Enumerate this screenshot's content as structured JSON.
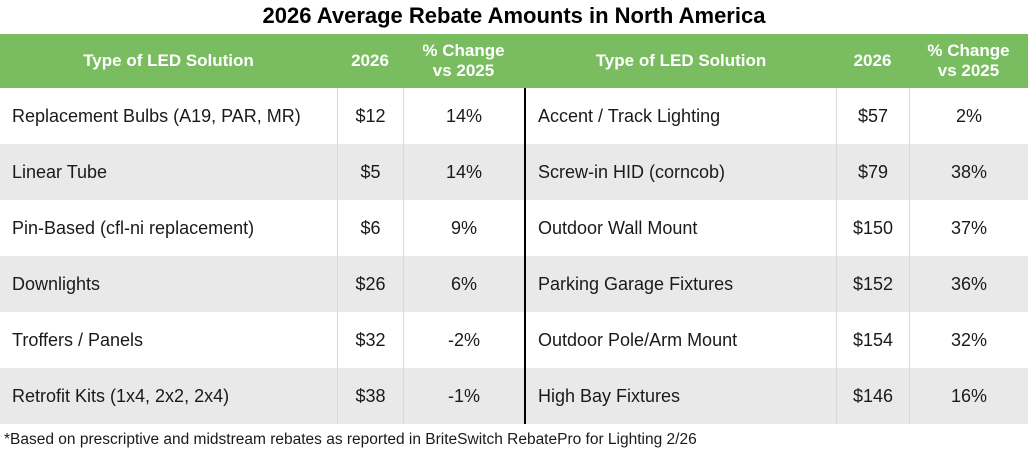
{
  "title": "2026 Average Rebate Amounts in North America",
  "footnote": "*Based on prescriptive and midstream rebates as reported in BriteSwitch RebatePro for Lighting 2/26",
  "colors": {
    "header_bg": "#79bd60",
    "header_text": "#ffffff",
    "row_alt_bg": "#e9e9e9",
    "column_divider": "#d9d9d9",
    "table_split_line": "#000000",
    "body_text": "#1a1a1a"
  },
  "columns": {
    "type": "Type of LED Solution",
    "year": "2026",
    "change": "% Change vs 2025"
  },
  "tables": [
    {
      "rows": [
        {
          "type": "Replacement Bulbs (A19, PAR, MR)",
          "amount": "$12",
          "change": "14%"
        },
        {
          "type": "Linear Tube",
          "amount": "$5",
          "change": "14%"
        },
        {
          "type": "Pin-Based (cfl-ni replacement)",
          "amount": "$6",
          "change": "9%"
        },
        {
          "type": "Downlights",
          "amount": "$26",
          "change": "6%"
        },
        {
          "type": "Troffers / Panels",
          "amount": "$32",
          "change": "-2%"
        },
        {
          "type": "Retrofit Kits (1x4, 2x2, 2x4)",
          "amount": "$38",
          "change": "-1%"
        }
      ]
    },
    {
      "rows": [
        {
          "type": "Accent / Track Lighting",
          "amount": "$57",
          "change": "2%"
        },
        {
          "type": "Screw-in HID (corncob)",
          "amount": "$79",
          "change": "38%"
        },
        {
          "type": "Outdoor Wall Mount",
          "amount": "$150",
          "change": "37%"
        },
        {
          "type": "Parking Garage Fixtures",
          "amount": "$152",
          "change": "36%"
        },
        {
          "type": "Outdoor Pole/Arm Mount",
          "amount": "$154",
          "change": "32%"
        },
        {
          "type": "High Bay Fixtures",
          "amount": "$146",
          "change": "16%"
        }
      ]
    }
  ],
  "chart_data": {
    "type": "table",
    "title": "2026 Average Rebate Amounts in North America",
    "columns": [
      "Type of LED Solution",
      "2026",
      "% Change vs 2025"
    ],
    "rows": [
      [
        "Replacement Bulbs (A19, PAR, MR)",
        12,
        14
      ],
      [
        "Linear Tube",
        5,
        14
      ],
      [
        "Pin-Based (cfl-ni replacement)",
        6,
        9
      ],
      [
        "Downlights",
        26,
        6
      ],
      [
        "Troffers / Panels",
        32,
        -2
      ],
      [
        "Retrofit Kits (1x4, 2x2, 2x4)",
        38,
        -1
      ],
      [
        "Accent / Track Lighting",
        57,
        2
      ],
      [
        "Screw-in HID (corncob)",
        79,
        38
      ],
      [
        "Outdoor Wall Mount",
        150,
        37
      ],
      [
        "Parking Garage Fixtures",
        152,
        36
      ],
      [
        "Outdoor Pole/Arm Mount",
        154,
        32
      ],
      [
        "High Bay Fixtures",
        146,
        16
      ]
    ],
    "units": {
      "2026": "USD",
      "% Change vs 2025": "percent"
    },
    "footnote": "*Based on prescriptive and midstream rebates as reported in BriteSwitch RebatePro for Lighting 2/26",
    "layout": "two side-by-side tables of 6 rows, split by vertical black line"
  }
}
